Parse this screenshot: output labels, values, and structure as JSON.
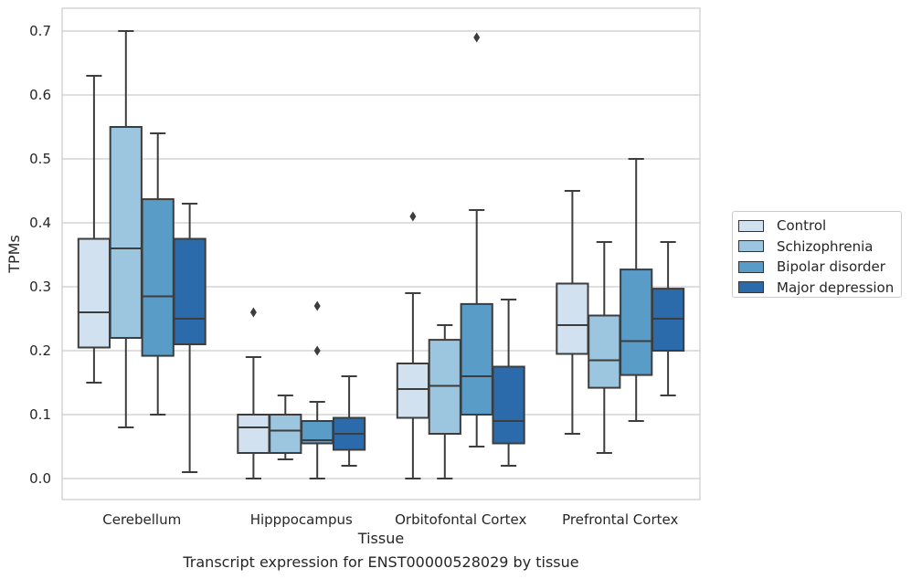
{
  "chart_data": {
    "type": "box",
    "title": "",
    "caption": "Transcript expression for ENST00000528029 by tissue",
    "xlabel": "Tissue",
    "ylabel": "TPMs",
    "ylim": [
      -0.035,
      0.735
    ],
    "yticks": [
      "0.0",
      "0.1",
      "0.2",
      "0.3",
      "0.4",
      "0.5",
      "0.6",
      "0.7"
    ],
    "grid": "horizontal",
    "legend_position": "right",
    "categories": [
      "Cerebellum",
      "Hipppocampus",
      "Orbitofontal Cortex",
      "Prefrontal Cortex"
    ],
    "series": [
      {
        "name": "Control",
        "color": "#d1e1f0",
        "boxes": [
          {
            "whislo": 0.15,
            "q1": 0.205,
            "med": 0.26,
            "q3": 0.375,
            "whishi": 0.63,
            "fliers": []
          },
          {
            "whislo": 0.0,
            "q1": 0.04,
            "med": 0.08,
            "q3": 0.1,
            "whishi": 0.19,
            "fliers": [
              0.26
            ]
          },
          {
            "whislo": 0.0,
            "q1": 0.095,
            "med": 0.14,
            "q3": 0.18,
            "whishi": 0.29,
            "fliers": [
              0.41
            ]
          },
          {
            "whislo": 0.07,
            "q1": 0.195,
            "med": 0.24,
            "q3": 0.305,
            "whishi": 0.45,
            "fliers": []
          }
        ]
      },
      {
        "name": "Schizophrenia",
        "color": "#9cc5df",
        "boxes": [
          {
            "whislo": 0.08,
            "q1": 0.22,
            "med": 0.36,
            "q3": 0.55,
            "whishi": 0.7,
            "fliers": []
          },
          {
            "whislo": 0.03,
            "q1": 0.04,
            "med": 0.075,
            "q3": 0.1,
            "whishi": 0.13,
            "fliers": []
          },
          {
            "whislo": 0.0,
            "q1": 0.07,
            "med": 0.145,
            "q3": 0.217,
            "whishi": 0.24,
            "fliers": []
          },
          {
            "whislo": 0.04,
            "q1": 0.142,
            "med": 0.185,
            "q3": 0.255,
            "whishi": 0.37,
            "fliers": []
          }
        ]
      },
      {
        "name": "Bipolar disorder",
        "color": "#5a9cc8",
        "boxes": [
          {
            "whislo": 0.1,
            "q1": 0.192,
            "med": 0.285,
            "q3": 0.437,
            "whishi": 0.54,
            "fliers": []
          },
          {
            "whislo": 0.0,
            "q1": 0.055,
            "med": 0.06,
            "q3": 0.09,
            "whishi": 0.12,
            "fliers": [
              0.27,
              0.2
            ]
          },
          {
            "whislo": 0.05,
            "q1": 0.1,
            "med": 0.16,
            "q3": 0.273,
            "whishi": 0.42,
            "fliers": [
              0.69
            ]
          },
          {
            "whislo": 0.09,
            "q1": 0.162,
            "med": 0.215,
            "q3": 0.327,
            "whishi": 0.5,
            "fliers": []
          }
        ]
      },
      {
        "name": "Major depression",
        "color": "#2b6bab",
        "boxes": [
          {
            "whislo": 0.01,
            "q1": 0.21,
            "med": 0.25,
            "q3": 0.375,
            "whishi": 0.43,
            "fliers": []
          },
          {
            "whislo": 0.02,
            "q1": 0.045,
            "med": 0.07,
            "q3": 0.095,
            "whishi": 0.16,
            "fliers": []
          },
          {
            "whislo": 0.02,
            "q1": 0.055,
            "med": 0.09,
            "q3": 0.175,
            "whishi": 0.28,
            "fliers": []
          },
          {
            "whislo": 0.13,
            "q1": 0.2,
            "med": 0.25,
            "q3": 0.297,
            "whishi": 0.37,
            "fliers": []
          }
        ]
      }
    ]
  }
}
